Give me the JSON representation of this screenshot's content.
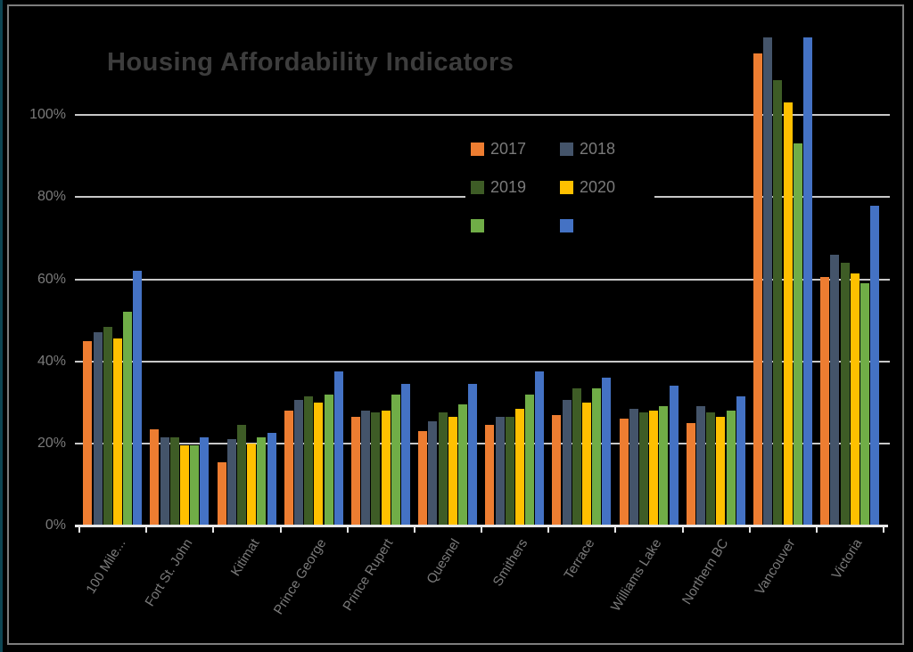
{
  "title": "Housing Affordability Indicators",
  "colors": {
    "background": "#000000",
    "frame_border": "#7d7d7d",
    "left_edge_strip": "#0d4553",
    "title_text": "#3d3d3d",
    "axis_text": "#7a7a7a",
    "gridline": "#c8c8c8",
    "axis_line": "#e8e8e8"
  },
  "legend": {
    "items": [
      {
        "label": "2017",
        "color": "#ED7D31"
      },
      {
        "label": "2018",
        "color": "#44546A"
      },
      {
        "label": "2019",
        "color": "#3E5C26"
      },
      {
        "label": "2020",
        "color": "#FFC000"
      },
      {
        "label": "",
        "color": "#70AD47"
      },
      {
        "label": "",
        "color": "#4472C4"
      }
    ]
  },
  "chart_data": {
    "type": "bar",
    "title": "Housing Affordability Indicators",
    "categories": [
      "100 Mile...",
      "Fort St. John",
      "Kitimat",
      "Prince George",
      "Prince Rupert",
      "Quesnel",
      "Smithers",
      "Terrace",
      "Williams Lake",
      "Northern BC",
      "Vancouver",
      "Victoria"
    ],
    "series": [
      {
        "name": "2017",
        "color": "#ED7D31",
        "values": [
          45,
          23.5,
          15.5,
          28,
          26.5,
          23,
          24.5,
          27,
          26,
          25,
          115,
          60.5
        ]
      },
      {
        "name": "2018",
        "color": "#44546A",
        "values": [
          47,
          21.5,
          21,
          30.5,
          28,
          25.5,
          26.5,
          30.5,
          28.5,
          29,
          119,
          66
        ]
      },
      {
        "name": "2019",
        "color": "#3E5C26",
        "values": [
          48.5,
          21.5,
          24.5,
          31.5,
          27.5,
          27.5,
          26.5,
          33.5,
          27.5,
          27.5,
          108.5,
          64
        ]
      },
      {
        "name": "2020",
        "color": "#FFC000",
        "values": [
          45.5,
          19.5,
          20,
          30,
          28,
          26.5,
          28.5,
          30,
          28,
          26.5,
          103,
          61.5
        ]
      },
      {
        "name": "",
        "color": "#70AD47",
        "values": [
          52,
          19.5,
          21.5,
          32,
          32,
          29.5,
          32,
          33.5,
          29,
          28,
          93,
          59
        ]
      },
      {
        "name": "",
        "color": "#4472C4",
        "values": [
          62,
          21.5,
          22.5,
          37.5,
          34.5,
          34.5,
          37.5,
          36,
          34,
          31.5,
          119,
          78
        ]
      }
    ],
    "xlabel": "",
    "ylabel": "",
    "y_ticks": [
      {
        "label": "0%",
        "value": 0
      },
      {
        "label": "20%",
        "value": 20
      },
      {
        "label": "40%",
        "value": 40
      },
      {
        "label": "60%",
        "value": 60
      },
      {
        "label": "80%",
        "value": 80
      },
      {
        "label": "100%",
        "value": 100
      }
    ],
    "ylim": [
      0,
      120
    ],
    "grid": true,
    "legend_position": "upper-center-right"
  }
}
